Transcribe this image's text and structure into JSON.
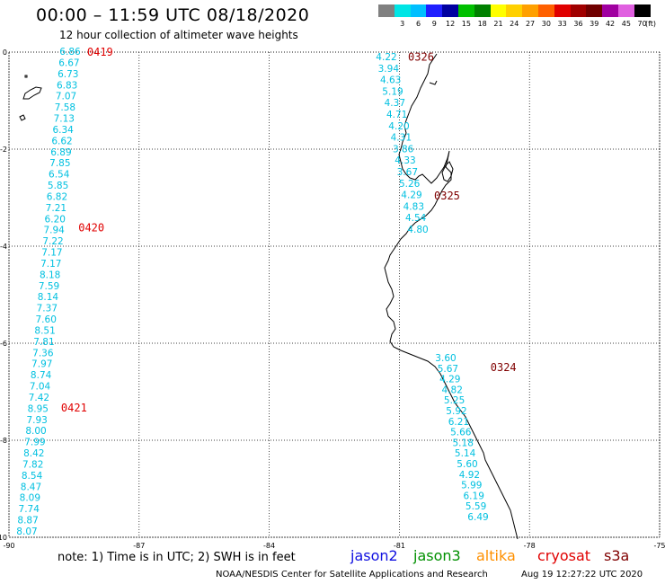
{
  "header": {
    "title": "00:00 – 11:59 UTC 08/18/2020",
    "subtitle": "12 hour collection of altimeter wave heights"
  },
  "legend": {
    "unit": "(ft)",
    "bins": [
      {
        "label": "",
        "color": "#808080"
      },
      {
        "label": "3",
        "color": "#00e5e5"
      },
      {
        "label": "6",
        "color": "#00bfff"
      },
      {
        "label": "9",
        "color": "#1f1fff"
      },
      {
        "label": "12",
        "color": "#0000a0"
      },
      {
        "label": "15",
        "color": "#00c000"
      },
      {
        "label": "18",
        "color": "#008000"
      },
      {
        "label": "21",
        "color": "#ffff00"
      },
      {
        "label": "24",
        "color": "#ffd000"
      },
      {
        "label": "27",
        "color": "#ffa000"
      },
      {
        "label": "30",
        "color": "#ff6000"
      },
      {
        "label": "33",
        "color": "#e00000"
      },
      {
        "label": "36",
        "color": "#a00000"
      },
      {
        "label": "39",
        "color": "#700000"
      },
      {
        "label": "42",
        "color": "#a000a0"
      },
      {
        "label": "45",
        "color": "#e060e0"
      },
      {
        "label": "70",
        "color": "#000000"
      }
    ]
  },
  "map": {
    "lon_range": [
      -90,
      -75
    ],
    "lat_range": [
      -10,
      0
    ],
    "x_ticks": [
      -90,
      -87,
      -84,
      -81,
      -78,
      -75
    ],
    "y_ticks": [
      0,
      -2,
      -4,
      -6,
      -8,
      -10
    ],
    "grid": true,
    "label_color": "#00c0e0",
    "pass_label_colors": {
      "0419": "#e00000",
      "0420": "#e00000",
      "0421": "#e00000",
      "0326": "#800000",
      "0325": "#800000",
      "0324": "#800000"
    },
    "passes": [
      {
        "id": "west",
        "values": [
          "6.86",
          "6.67",
          "6.73",
          "6.83",
          "7.07",
          "7.58",
          "7.13",
          "6.34",
          "6.62",
          "6.89",
          "7.85",
          "6.54",
          "5.85",
          "6.82",
          "7.21",
          "6.20",
          "7.94",
          "7.22",
          "7.17",
          "7.17",
          "8.18",
          "7.59",
          "8.14",
          "7.37",
          "7.60",
          "8.51",
          "7.81",
          "7.36",
          "7.97",
          "8.74",
          "7.04",
          "7.42",
          "8.95",
          "7.93",
          "8.00",
          "7.99",
          "8.42",
          "7.82",
          "8.54",
          "8.47",
          "8.09",
          "7.74",
          "8.87",
          "8.07"
        ]
      },
      {
        "id": "north",
        "values": [
          "4.22",
          "3.94",
          "4.63",
          "5.19",
          "4.37",
          "4.71",
          "4.20",
          "4.31",
          "3.86",
          "4.33",
          "3.67",
          "5.26",
          "4.29",
          "4.83",
          "4.54",
          "4.80"
        ]
      },
      {
        "id": "south",
        "values": [
          "3.60",
          "5.67",
          "4.29",
          "4.82",
          "5.25",
          "5.92",
          "6.21",
          "5.66",
          "5.18",
          "5.14",
          "5.60",
          "4.92",
          "5.99",
          "6.19",
          "5.59",
          "6.49"
        ]
      }
    ],
    "pass_times": [
      {
        "text": "0419",
        "lon": -88.2,
        "lat": 0.0
      },
      {
        "text": "0420",
        "lon": -88.4,
        "lat": -3.62
      },
      {
        "text": "0421",
        "lon": -88.8,
        "lat": -7.33
      },
      {
        "text": "0326",
        "lon": -80.8,
        "lat": -0.1
      },
      {
        "text": "0325",
        "lon": -80.2,
        "lat": -2.96
      },
      {
        "text": "0324",
        "lon": -78.9,
        "lat": -6.5
      }
    ]
  },
  "note": "note:  1) Time is in UTC;  2) SWH is in feet",
  "satellites": [
    {
      "name": "jason2",
      "color": "#1010e0"
    },
    {
      "name": "jason3",
      "color": "#009000"
    },
    {
      "name": "altika",
      "color": "#ff9000"
    },
    {
      "name": "cryosat",
      "color": "#e00000"
    },
    {
      "name": "s3a",
      "color": "#800000"
    }
  ],
  "footer": {
    "credit": "NOAA/NESDIS Center for Satellite Applications and Research",
    "timestamp": "Aug 19 12:27:22 UTC 2020"
  }
}
